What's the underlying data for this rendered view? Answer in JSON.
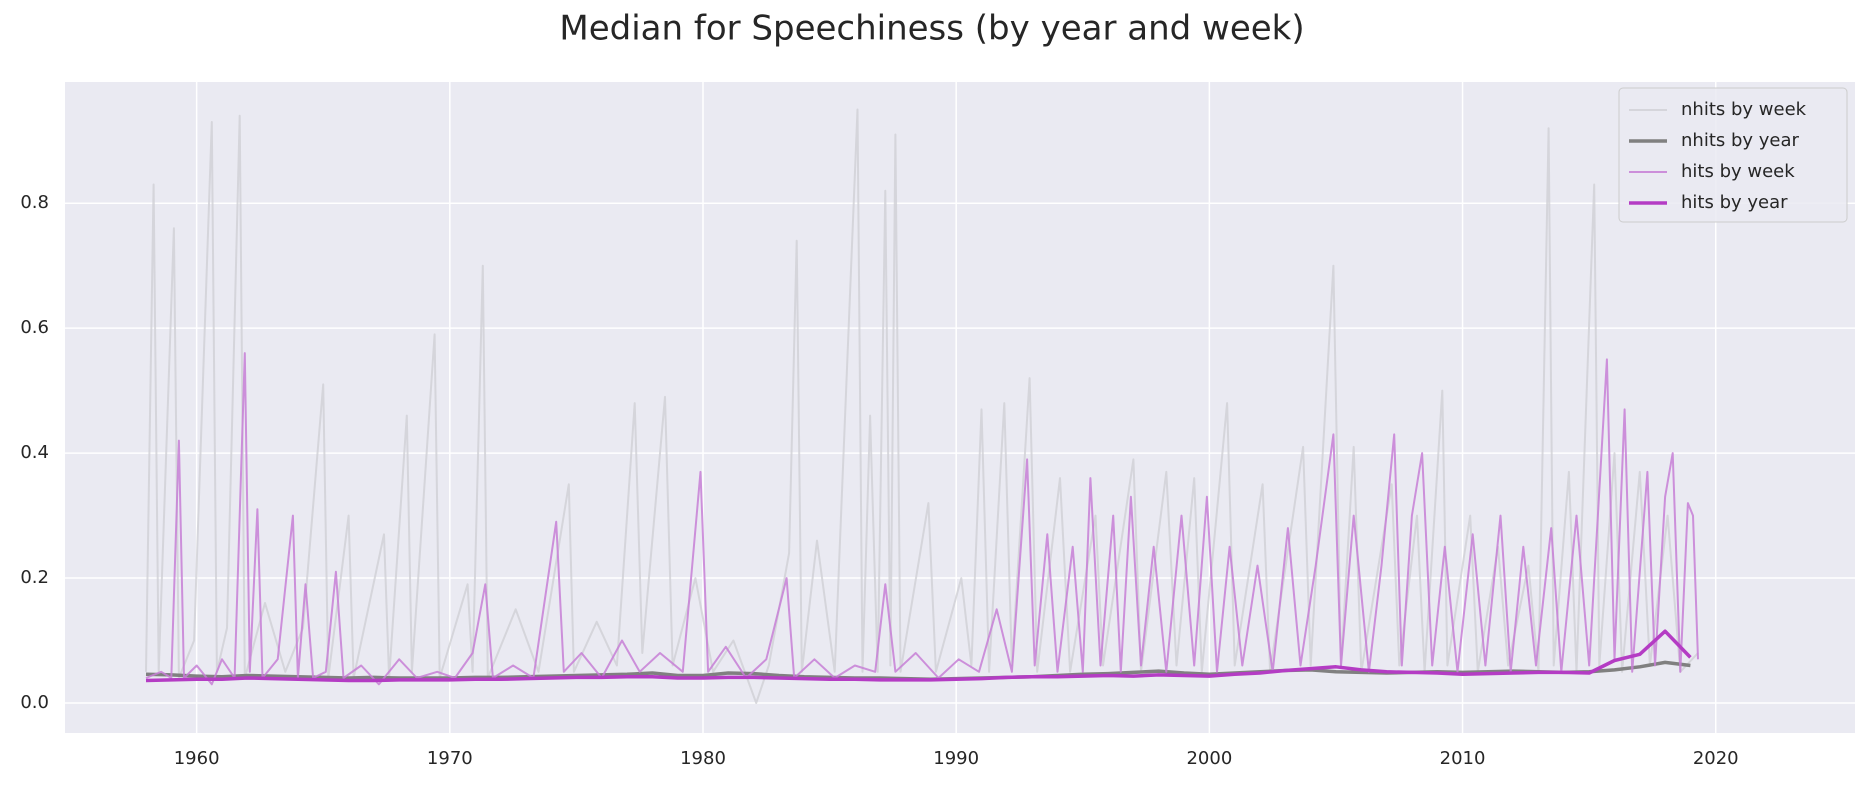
{
  "chart_data": {
    "type": "line",
    "title": "Median for Speechiness (by year and week)",
    "xlim": [
      1954.8,
      2025.5
    ],
    "xticks": [
      1960,
      1970,
      1980,
      1990,
      2000,
      2010,
      2020
    ],
    "ylim": [
      -0.048,
      0.994
    ],
    "yticks": [
      {
        "value": 0,
        "label": "0.0"
      },
      0.2,
      0.4,
      0.6,
      0.8
    ],
    "grid": true,
    "legend": "upper right",
    "series": [
      {
        "name": "nhits by week",
        "color": "#cfcfd4",
        "x": [
          1958.0,
          1958.3,
          1958.5,
          1959.1,
          1959.3,
          1959.9,
          1960.6,
          1960.8,
          1961.2,
          1961.7,
          1961.9,
          1962.7,
          1963.5,
          1964.2,
          1965.0,
          1965.2,
          1966.0,
          1966.2,
          1967.4,
          1967.6,
          1968.3,
          1968.5,
          1969.4,
          1969.6,
          1970.7,
          1970.9,
          1971.3,
          1971.5,
          1972.6,
          1973.5,
          1974.7,
          1974.9,
          1975.8,
          1976.6,
          1977.3,
          1977.6,
          1978.5,
          1978.8,
          1979.7,
          1980.4,
          1981.2,
          1982.1,
          1982.6,
          1983.4,
          1983.7,
          1983.9,
          1984.5,
          1985.2,
          1986.1,
          1986.3,
          1986.6,
          1986.9,
          1987.2,
          1987.4,
          1987.6,
          1987.8,
          1988.9,
          1989.2,
          1990.2,
          1990.6,
          1991.0,
          1991.3,
          1991.9,
          1992.2,
          1992.9,
          1993.2,
          1994.1,
          1994.5,
          1995.5,
          1995.8,
          1997.0,
          1997.3,
          1998.3,
          1998.7,
          1999.4,
          1999.7,
          2000.7,
          2001.0,
          2002.1,
          2002.4,
          2003.7,
          2004.0,
          2004.9,
          2005.2,
          2005.7,
          2006.0,
          2007.2,
          2007.5,
          2008.2,
          2008.5,
          2009.2,
          2009.4,
          2010.3,
          2010.6,
          2011.4,
          2011.8,
          2012.6,
          2013.0,
          2013.4,
          2013.6,
          2014.2,
          2014.5,
          2015.2,
          2015.4,
          2016.0,
          2016.3,
          2017.0,
          2017.4,
          2018.1,
          2018.6,
          2019.3
        ],
        "values": [
          0.05,
          0.83,
          0.05,
          0.76,
          0.04,
          0.1,
          0.93,
          0.05,
          0.12,
          0.94,
          0.04,
          0.16,
          0.05,
          0.12,
          0.51,
          0.04,
          0.3,
          0.04,
          0.27,
          0.04,
          0.46,
          0.05,
          0.59,
          0.04,
          0.19,
          0.05,
          0.7,
          0.04,
          0.15,
          0.05,
          0.35,
          0.05,
          0.13,
          0.06,
          0.48,
          0.08,
          0.49,
          0.06,
          0.2,
          0.05,
          0.1,
          0.0,
          0.06,
          0.24,
          0.74,
          0.05,
          0.26,
          0.05,
          0.95,
          0.05,
          0.46,
          0.05,
          0.82,
          0.06,
          0.91,
          0.05,
          0.32,
          0.05,
          0.2,
          0.06,
          0.47,
          0.05,
          0.48,
          0.06,
          0.52,
          0.05,
          0.36,
          0.05,
          0.3,
          0.06,
          0.39,
          0.05,
          0.37,
          0.06,
          0.36,
          0.05,
          0.48,
          0.06,
          0.35,
          0.05,
          0.41,
          0.06,
          0.7,
          0.06,
          0.41,
          0.05,
          0.35,
          0.06,
          0.3,
          0.05,
          0.5,
          0.06,
          0.3,
          0.05,
          0.25,
          0.06,
          0.22,
          0.05,
          0.92,
          0.06,
          0.37,
          0.05,
          0.83,
          0.06,
          0.4,
          0.05,
          0.37,
          0.06,
          0.3,
          0.05,
          0.08
        ]
      },
      {
        "name": "nhits by year",
        "color": "#808080",
        "x": [
          1958,
          1959,
          1960,
          1961,
          1962,
          1963,
          1964,
          1965,
          1966,
          1967,
          1968,
          1969,
          1970,
          1971,
          1972,
          1973,
          1974,
          1975,
          1976,
          1977,
          1978,
          1979,
          1980,
          1981,
          1982,
          1983,
          1984,
          1985,
          1986,
          1987,
          1988,
          1989,
          1990,
          1991,
          1992,
          1993,
          1994,
          1995,
          1996,
          1997,
          1998,
          1999,
          2000,
          2001,
          2002,
          2003,
          2004,
          2005,
          2006,
          2007,
          2008,
          2009,
          2010,
          2011,
          2012,
          2013,
          2014,
          2015,
          2016,
          2017,
          2018,
          2019
        ],
        "values": [
          0.046,
          0.045,
          0.043,
          0.042,
          0.044,
          0.043,
          0.042,
          0.041,
          0.04,
          0.041,
          0.04,
          0.04,
          0.04,
          0.041,
          0.041,
          0.042,
          0.043,
          0.044,
          0.045,
          0.046,
          0.048,
          0.044,
          0.044,
          0.048,
          0.047,
          0.044,
          0.042,
          0.041,
          0.04,
          0.04,
          0.039,
          0.038,
          0.039,
          0.04,
          0.041,
          0.042,
          0.044,
          0.046,
          0.047,
          0.049,
          0.051,
          0.048,
          0.046,
          0.048,
          0.05,
          0.052,
          0.053,
          0.05,
          0.049,
          0.048,
          0.049,
          0.05,
          0.049,
          0.05,
          0.051,
          0.05,
          0.049,
          0.05,
          0.053,
          0.058,
          0.065,
          0.06
        ]
      },
      {
        "name": "hits by week",
        "color": "#c77fd6",
        "x": [
          1958.0,
          1958.6,
          1959.0,
          1959.3,
          1959.5,
          1960.0,
          1960.6,
          1961.0,
          1961.5,
          1961.9,
          1962.1,
          1962.4,
          1962.6,
          1963.2,
          1963.8,
          1964.0,
          1964.3,
          1964.6,
          1965.1,
          1965.5,
          1965.8,
          1966.5,
          1967.2,
          1968.0,
          1968.7,
          1969.5,
          1970.2,
          1970.9,
          1971.4,
          1971.7,
          1972.5,
          1973.3,
          1974.2,
          1974.5,
          1975.2,
          1976.0,
          1976.8,
          1977.5,
          1978.3,
          1979.2,
          1979.9,
          1980.2,
          1980.9,
          1981.7,
          1982.5,
          1983.3,
          1983.6,
          1984.4,
          1985.2,
          1986.0,
          1986.8,
          1987.2,
          1987.6,
          1988.4,
          1989.3,
          1990.1,
          1990.9,
          1991.6,
          1992.2,
          1992.8,
          1993.1,
          1993.6,
          1994.0,
          1994.6,
          1995.0,
          1995.3,
          1995.7,
          1996.2,
          1996.5,
          1996.9,
          1997.3,
          1997.8,
          1998.3,
          1998.9,
          1999.4,
          1999.9,
          2000.3,
          2000.8,
          2001.3,
          2001.9,
          2002.5,
          2003.1,
          2003.6,
          2004.2,
          2004.9,
          2005.2,
          2005.7,
          2006.3,
          2006.8,
          2007.3,
          2007.6,
          2008.0,
          2008.4,
          2008.8,
          2009.3,
          2009.8,
          2010.4,
          2010.9,
          2011.5,
          2011.9,
          2012.4,
          2012.9,
          2013.5,
          2013.9,
          2014.5,
          2015.0,
          2015.7,
          2016.0,
          2016.4,
          2016.7,
          2017.3,
          2017.6,
          2018.0,
          2018.3,
          2018.6,
          2018.9,
          2019.1,
          2019.3
        ],
        "values": [
          0.04,
          0.05,
          0.04,
          0.42,
          0.04,
          0.06,
          0.03,
          0.07,
          0.04,
          0.56,
          0.05,
          0.31,
          0.04,
          0.07,
          0.3,
          0.04,
          0.19,
          0.04,
          0.05,
          0.21,
          0.04,
          0.06,
          0.03,
          0.07,
          0.04,
          0.05,
          0.04,
          0.08,
          0.19,
          0.04,
          0.06,
          0.04,
          0.29,
          0.05,
          0.08,
          0.04,
          0.1,
          0.05,
          0.08,
          0.05,
          0.37,
          0.05,
          0.09,
          0.04,
          0.07,
          0.2,
          0.04,
          0.07,
          0.04,
          0.06,
          0.05,
          0.19,
          0.05,
          0.08,
          0.04,
          0.07,
          0.05,
          0.15,
          0.05,
          0.39,
          0.06,
          0.27,
          0.05,
          0.25,
          0.05,
          0.36,
          0.06,
          0.3,
          0.05,
          0.33,
          0.06,
          0.25,
          0.05,
          0.3,
          0.06,
          0.33,
          0.05,
          0.25,
          0.06,
          0.22,
          0.05,
          0.28,
          0.06,
          0.22,
          0.43,
          0.06,
          0.3,
          0.05,
          0.22,
          0.43,
          0.06,
          0.3,
          0.4,
          0.06,
          0.25,
          0.05,
          0.27,
          0.06,
          0.3,
          0.05,
          0.25,
          0.06,
          0.28,
          0.05,
          0.3,
          0.06,
          0.55,
          0.07,
          0.47,
          0.05,
          0.37,
          0.06,
          0.33,
          0.4,
          0.05,
          0.32,
          0.3,
          0.07
        ]
      },
      {
        "name": "hits by year",
        "color": "#b43cc4",
        "x": [
          1958,
          1959,
          1960,
          1961,
          1962,
          1963,
          1964,
          1965,
          1966,
          1967,
          1968,
          1969,
          1970,
          1971,
          1972,
          1973,
          1974,
          1975,
          1976,
          1977,
          1978,
          1979,
          1980,
          1981,
          1982,
          1983,
          1984,
          1985,
          1986,
          1987,
          1988,
          1989,
          1990,
          1991,
          1992,
          1993,
          1994,
          1995,
          1996,
          1997,
          1998,
          1999,
          2000,
          2001,
          2002,
          2003,
          2004,
          2005,
          2006,
          2007,
          2008,
          2009,
          2010,
          2011,
          2012,
          2013,
          2014,
          2015,
          2016,
          2017,
          2018,
          2019
        ],
        "values": [
          0.036,
          0.037,
          0.038,
          0.038,
          0.04,
          0.039,
          0.038,
          0.037,
          0.036,
          0.036,
          0.037,
          0.037,
          0.037,
          0.038,
          0.038,
          0.039,
          0.04,
          0.041,
          0.041,
          0.042,
          0.042,
          0.04,
          0.04,
          0.041,
          0.041,
          0.04,
          0.039,
          0.038,
          0.038,
          0.037,
          0.037,
          0.037,
          0.038,
          0.039,
          0.041,
          0.042,
          0.042,
          0.043,
          0.044,
          0.043,
          0.045,
          0.044,
          0.043,
          0.046,
          0.048,
          0.052,
          0.055,
          0.058,
          0.053,
          0.05,
          0.049,
          0.048,
          0.046,
          0.047,
          0.048,
          0.049,
          0.049,
          0.048,
          0.068,
          0.078,
          0.115,
          0.073
        ]
      }
    ]
  }
}
